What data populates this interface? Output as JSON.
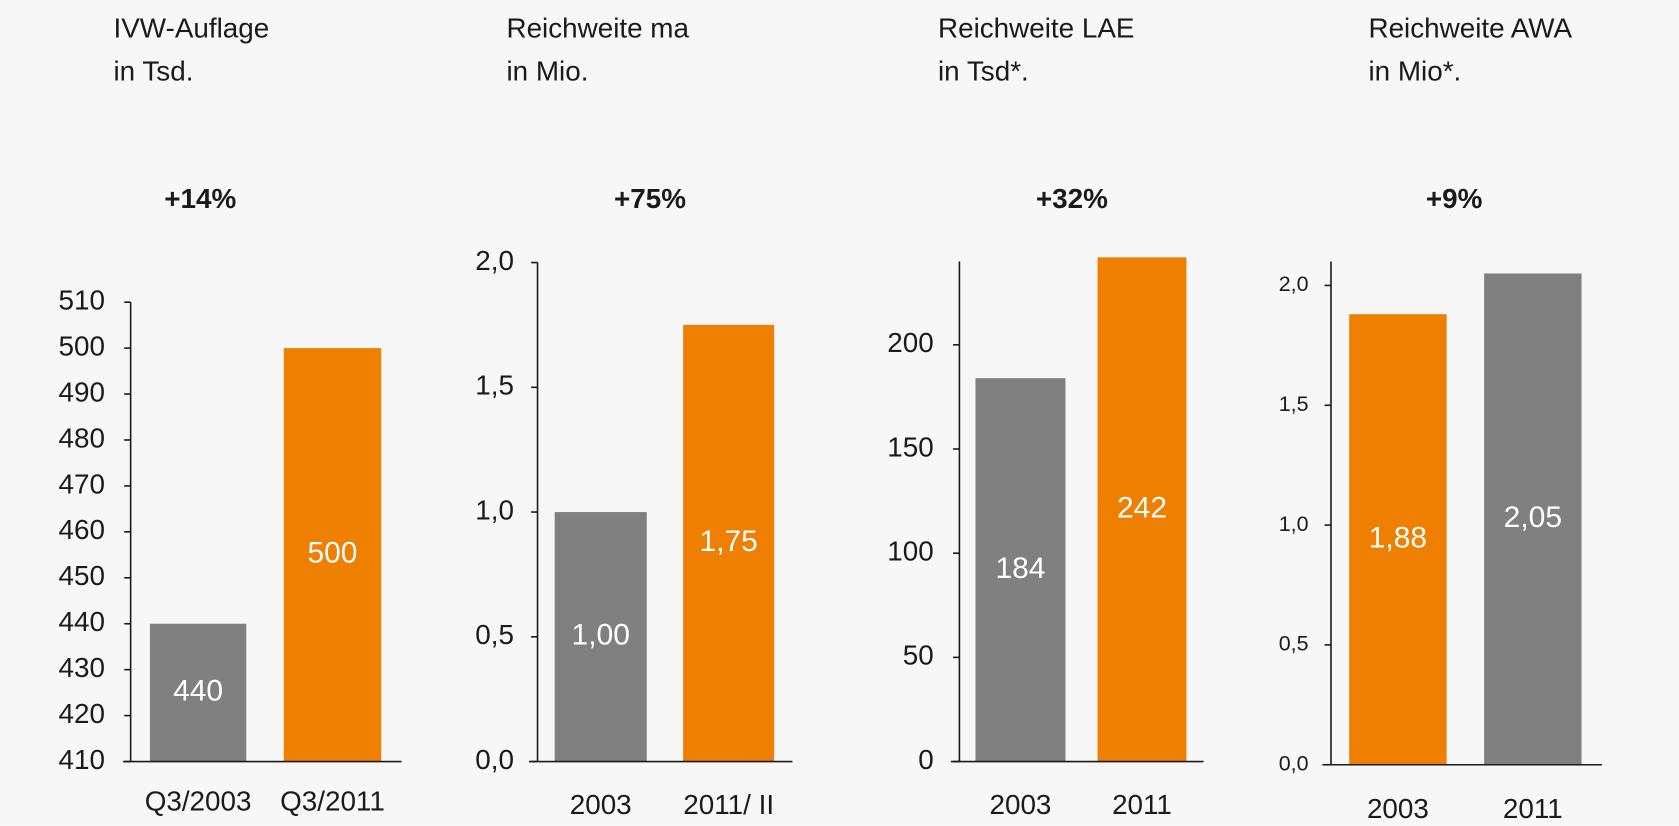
{
  "chart_data": [
    {
      "type": "bar",
      "title": "IVW-Auflage",
      "subtitle": "in Tsd.",
      "annotation": "+14%",
      "categories": [
        "Q3/2003",
        "Q3/2011"
      ],
      "values": [
        440,
        500
      ],
      "colors": [
        "#808080",
        "#ee7f00"
      ],
      "ylim": [
        410,
        510
      ],
      "yticks": [
        410,
        420,
        430,
        440,
        450,
        460,
        470,
        480,
        490,
        500,
        510
      ]
    },
    {
      "type": "bar",
      "title": "Reichweite ma",
      "subtitle": "in Mio.",
      "annotation": "+75%",
      "categories": [
        "2003",
        "2011/ II"
      ],
      "values": [
        1.0,
        1.75
      ],
      "value_labels": [
        "1,00",
        "1,75"
      ],
      "colors": [
        "#808080",
        "#ee7f00"
      ],
      "ylim": [
        0,
        2
      ],
      "yticks": [
        {
          "value": 0,
          "label": "0,0"
        },
        {
          "value": 0.5,
          "label": "0,5"
        },
        {
          "value": 1,
          "label": "1,0"
        },
        {
          "value": 1.5,
          "label": "1,5"
        },
        {
          "value": 2,
          "label": "2,0"
        }
      ]
    },
    {
      "type": "bar",
      "title": "Reichweite LAE",
      "subtitle": "in Tsd*.",
      "annotation": "+32%",
      "categories": [
        "2003",
        "2011"
      ],
      "values": [
        184,
        242
      ],
      "colors": [
        "#808080",
        "#ee7f00"
      ],
      "ylim": [
        0,
        240
      ],
      "yticks": [
        0,
        50,
        100,
        150,
        200
      ]
    },
    {
      "type": "bar",
      "title": "Reichweite AWA",
      "subtitle": "in Mio*.",
      "annotation": "+9%",
      "categories": [
        "2003",
        "2011"
      ],
      "values": [
        1.88,
        2.05
      ],
      "value_labels": [
        "1,88",
        "2,05"
      ],
      "colors": [
        "#ee7f00",
        "#808080"
      ],
      "ylim": [
        0,
        2.1
      ],
      "yticks": [
        {
          "value": 0,
          "label": "0,0"
        },
        {
          "value": 0.5,
          "label": "0,5"
        },
        {
          "value": 1,
          "label": "1,0"
        },
        {
          "value": 1.5,
          "label": "1,5"
        },
        {
          "value": 2,
          "label": "2,0"
        }
      ]
    }
  ]
}
